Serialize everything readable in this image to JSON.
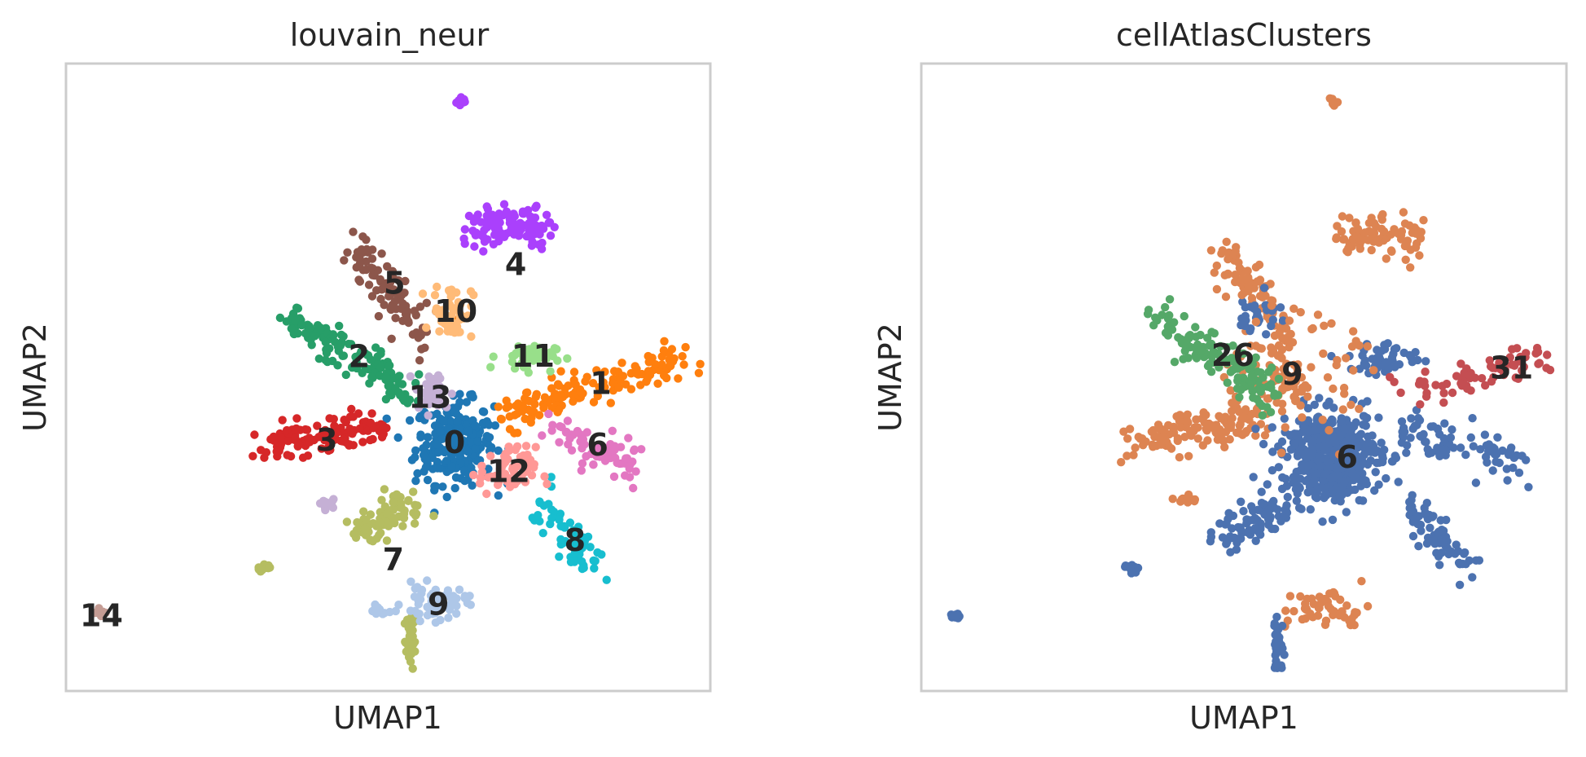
{
  "chart_data": [
    {
      "type": "scatter",
      "title": "louvain_neur",
      "xlabel": "UMAP1",
      "ylabel": "UMAP2",
      "xlim": [
        0,
        100
      ],
      "ylim": [
        0,
        100
      ],
      "grid": false,
      "legend": "on data",
      "clusters": [
        {
          "name": "0",
          "color": "#1f77b4",
          "center": [
            60.3,
            39.6
          ],
          "spread": [
            5.5,
            6.0
          ],
          "n": 260
        },
        {
          "name": "1",
          "color": "#ff7f0e",
          "center": [
            80.5,
            49.0
          ],
          "spread": [
            14.0,
            3.8
          ],
          "n": 140,
          "shape": "line",
          "from": [
            67.5,
            44.0
          ],
          "to": [
            96.5,
            53.0
          ]
        },
        {
          "name": "2",
          "color": "#279e68",
          "center": [
            44.0,
            54.0
          ],
          "spread": [
            9.0,
            5.0
          ],
          "n": 130,
          "shape": "line",
          "from": [
            35.0,
            59.0
          ],
          "to": [
            53.0,
            48.0
          ]
        },
        {
          "name": "3",
          "color": "#d62728",
          "center": [
            40.5,
            40.5
          ],
          "spread": [
            9.5,
            3.0
          ],
          "n": 120,
          "shape": "line",
          "from": [
            31.0,
            39.0
          ],
          "to": [
            49.0,
            42.0
          ]
        },
        {
          "name": "4",
          "color": "#aa40fc",
          "center": [
            69.8,
            68.0
          ],
          "spread": [
            5.0,
            7.0
          ],
          "n": 110,
          "shape": "line",
          "from": [
            63.0,
            74.0
          ],
          "to": [
            74.5,
            74.0
          ]
        },
        {
          "name": "5",
          "color": "#8c564b",
          "center": [
            50.5,
            64.3
          ],
          "spread": [
            5.0,
            8.0
          ],
          "n": 90,
          "shape": "line",
          "from": [
            45.0,
            71.0
          ],
          "to": [
            55.0,
            56.5
          ]
        },
        {
          "name": "6",
          "color": "#e377c2",
          "center": [
            82.0,
            38.8
          ],
          "spread": [
            7.0,
            3.0
          ],
          "n": 70,
          "shape": "line",
          "from": [
            75.0,
            42.0
          ],
          "to": [
            89.0,
            35.5
          ]
        },
        {
          "name": "7",
          "color": "#b5bd61",
          "center": [
            50.3,
            22.0
          ],
          "spread": [
            6.5,
            6.0
          ],
          "n": 80,
          "shape": "line",
          "from": [
            44.5,
            24.5
          ],
          "to": [
            54.5,
            30.0
          ]
        },
        {
          "name": "8",
          "color": "#17becf",
          "center": [
            78.5,
            24.5
          ],
          "spread": [
            4.0,
            6.0
          ],
          "n": 60,
          "shape": "line",
          "from": [
            74.0,
            30.0
          ],
          "to": [
            81.5,
            19.5
          ]
        },
        {
          "name": "9",
          "color": "#aec7e8",
          "center": [
            57.2,
            14.0
          ],
          "spread": [
            4.5,
            2.5
          ],
          "n": 60
        },
        {
          "name": "10",
          "color": "#ffbb78",
          "center": [
            60.0,
            60.5
          ],
          "spread": [
            2.8,
            4.0
          ],
          "n": 60
        },
        {
          "name": "11",
          "color": "#98df8a",
          "center": [
            71.5,
            53.3
          ],
          "spread": [
            4.0,
            2.0
          ],
          "n": 45
        },
        {
          "name": "12",
          "color": "#ff9896",
          "center": [
            68.5,
            35.0
          ],
          "spread": [
            4.0,
            3.5
          ],
          "n": 60
        },
        {
          "name": "13",
          "color": "#c5b0d5",
          "center": [
            57.0,
            47.5
          ],
          "spread": [
            2.5,
            3.0
          ],
          "n": 45
        },
        {
          "name": "14",
          "color": "#c49c94",
          "center": [
            5.5,
            12.5
          ],
          "spread": [
            0.8,
            0.6
          ],
          "n": 8
        }
      ],
      "extra_groups": [
        {
          "name": "4",
          "color": "#aa40fc",
          "center": [
            61.5,
            94.0
          ],
          "spread": [
            0.8,
            0.8
          ],
          "n": 12
        },
        {
          "name": "13",
          "color": "#c5b0d5",
          "center": [
            40.5,
            30.0
          ],
          "spread": [
            1.5,
            0.8
          ],
          "n": 12
        },
        {
          "name": "7",
          "color": "#b5bd61",
          "center": [
            31.0,
            19.5
          ],
          "spread": [
            1.2,
            0.6
          ],
          "n": 12
        },
        {
          "name": "7",
          "color": "#b5bd61",
          "center": [
            53.5,
            8.0
          ],
          "spread": [
            0.8,
            4.0
          ],
          "n": 30
        },
        {
          "name": "1",
          "color": "#ff7f0e",
          "center": [
            60.0,
            59.0
          ],
          "spread": [
            0.5,
            0.5
          ],
          "n": 4
        },
        {
          "name": "9",
          "color": "#aec7e8",
          "center": [
            48.5,
            12.8
          ],
          "spread": [
            1.5,
            0.7
          ],
          "n": 14
        }
      ]
    },
    {
      "type": "scatter",
      "title": "cellAtlasClusters",
      "xlabel": "UMAP1",
      "ylabel": "UMAP2",
      "xlim": [
        0,
        100
      ],
      "ylim": [
        0,
        100
      ],
      "grid": false,
      "legend": "on data",
      "clusters": [
        {
          "name": "6",
          "color": "#4c72b0",
          "center": [
            63.5,
            37.5
          ],
          "spread": [
            7.0,
            6.5
          ],
          "n": 480
        },
        {
          "name": "9",
          "color": "#dd8452",
          "center": [
            57.5,
            50.0
          ],
          "spread": [
            9.0,
            8.0
          ],
          "n": 120
        },
        {
          "name": "26",
          "color": "#55a868",
          "center": [
            48.5,
            53.5
          ],
          "spread": [
            8.0,
            4.5
          ],
          "n": 130,
          "shape": "line",
          "from": [
            37.0,
            59.0
          ],
          "to": [
            55.0,
            47.0
          ]
        },
        {
          "name": "31",
          "color": "#c44e52",
          "center": [
            90.0,
            52.0
          ],
          "spread": [
            4.5,
            1.5
          ],
          "n": 70,
          "shape": "line",
          "from": [
            75.0,
            47.5
          ],
          "to": [
            98.0,
            53.0
          ]
        }
      ],
      "extra_groups": [
        {
          "name": "9",
          "color": "#dd8452",
          "center": [
            43.0,
            55.0
          ],
          "spread": [
            5.0,
            1.5
          ],
          "n": 0
        },
        {
          "name": "9",
          "color": "#dd8452",
          "center": [
            50.5,
            67.0
          ],
          "spread": [
            5.0,
            6.0
          ],
          "n": 90,
          "shape": "line",
          "from": [
            47.0,
            70.0
          ],
          "to": [
            58.0,
            55.0
          ]
        },
        {
          "name": "9",
          "color": "#dd8452",
          "center": [
            70.0,
            68.5
          ],
          "spread": [
            4.0,
            6.0
          ],
          "n": 90,
          "shape": "line",
          "from": [
            65.0,
            73.0
          ],
          "to": [
            77.5,
            72.5
          ]
        },
        {
          "name": "9",
          "color": "#dd8452",
          "center": [
            40.5,
            40.0
          ],
          "spread": [
            9.0,
            3.0
          ],
          "n": 120,
          "shape": "line",
          "from": [
            32.0,
            40.0
          ],
          "to": [
            52.0,
            43.0
          ]
        },
        {
          "name": "9",
          "color": "#dd8452",
          "center": [
            63.0,
            13.0
          ],
          "spread": [
            6.0,
            3.0
          ],
          "n": 50
        },
        {
          "name": "9",
          "color": "#dd8452",
          "center": [
            41.0,
            30.5
          ],
          "spread": [
            1.5,
            0.7
          ],
          "n": 12
        },
        {
          "name": "9",
          "color": "#dd8452",
          "center": [
            63.8,
            94.0
          ],
          "spread": [
            0.7,
            0.7
          ],
          "n": 10
        },
        {
          "name": "6",
          "color": "#4c72b0",
          "center": [
            83.0,
            38.0
          ],
          "spread": [
            7.0,
            3.0
          ],
          "n": 80,
          "shape": "line",
          "from": [
            75.0,
            42.0
          ],
          "to": [
            94.0,
            35.0
          ]
        },
        {
          "name": "6",
          "color": "#4c72b0",
          "center": [
            80.0,
            24.0
          ],
          "spread": [
            4.0,
            6.0
          ],
          "n": 70,
          "shape": "line",
          "from": [
            75.0,
            30.0
          ],
          "to": [
            85.0,
            19.5
          ]
        },
        {
          "name": "6",
          "color": "#4c72b0",
          "center": [
            52.0,
            22.0
          ],
          "spread": [
            6.0,
            5.0
          ],
          "n": 80,
          "shape": "line",
          "from": [
            45.5,
            24.5
          ],
          "to": [
            56.5,
            29.0
          ]
        },
        {
          "name": "6",
          "color": "#4c72b0",
          "center": [
            55.3,
            7.0
          ],
          "spread": [
            0.8,
            4.0
          ],
          "n": 40
        },
        {
          "name": "6",
          "color": "#4c72b0",
          "center": [
            32.5,
            19.5
          ],
          "spread": [
            1.0,
            0.6
          ],
          "n": 12
        },
        {
          "name": "6",
          "color": "#4c72b0",
          "center": [
            5.5,
            12.0
          ],
          "spread": [
            0.8,
            0.6
          ],
          "n": 10
        },
        {
          "name": "6",
          "color": "#4c72b0",
          "center": [
            72.0,
            53.0
          ],
          "spread": [
            5.0,
            2.5
          ],
          "n": 50
        },
        {
          "name": "6",
          "color": "#4c72b0",
          "center": [
            52.5,
            60.0
          ],
          "spread": [
            3.0,
            3.0
          ],
          "n": 30
        }
      ]
    }
  ],
  "labels": [
    [
      {
        "text": "0",
        "pos": [
          60.3,
          39.6
        ]
      },
      {
        "text": "1",
        "pos": [
          83.0,
          49.0
        ]
      },
      {
        "text": "2",
        "pos": [
          45.5,
          53.3
        ]
      },
      {
        "text": "3",
        "pos": [
          40.5,
          40.0
        ]
      },
      {
        "text": "4",
        "pos": [
          69.8,
          68.0
        ]
      },
      {
        "text": "5",
        "pos": [
          51.0,
          65.0
        ]
      },
      {
        "text": "6",
        "pos": [
          82.5,
          39.2
        ]
      },
      {
        "text": "7",
        "pos": [
          50.8,
          21.0
        ]
      },
      {
        "text": "8",
        "pos": [
          79.0,
          24.0
        ]
      },
      {
        "text": "9",
        "pos": [
          57.8,
          13.8
        ]
      },
      {
        "text": "10",
        "pos": [
          60.5,
          60.5
        ]
      },
      {
        "text": "11",
        "pos": [
          72.5,
          53.4
        ]
      },
      {
        "text": "12",
        "pos": [
          68.7,
          35.0
        ]
      },
      {
        "text": "13",
        "pos": [
          56.5,
          46.8
        ]
      },
      {
        "text": "14",
        "pos": [
          5.5,
          12.0
        ]
      }
    ],
    [
      {
        "text": "26",
        "pos": [
          48.3,
          53.5
        ]
      },
      {
        "text": "9",
        "pos": [
          57.5,
          50.5
        ]
      },
      {
        "text": "31",
        "pos": [
          91.5,
          51.5
        ]
      },
      {
        "text": "6",
        "pos": [
          66.0,
          37.3
        ]
      }
    ]
  ]
}
